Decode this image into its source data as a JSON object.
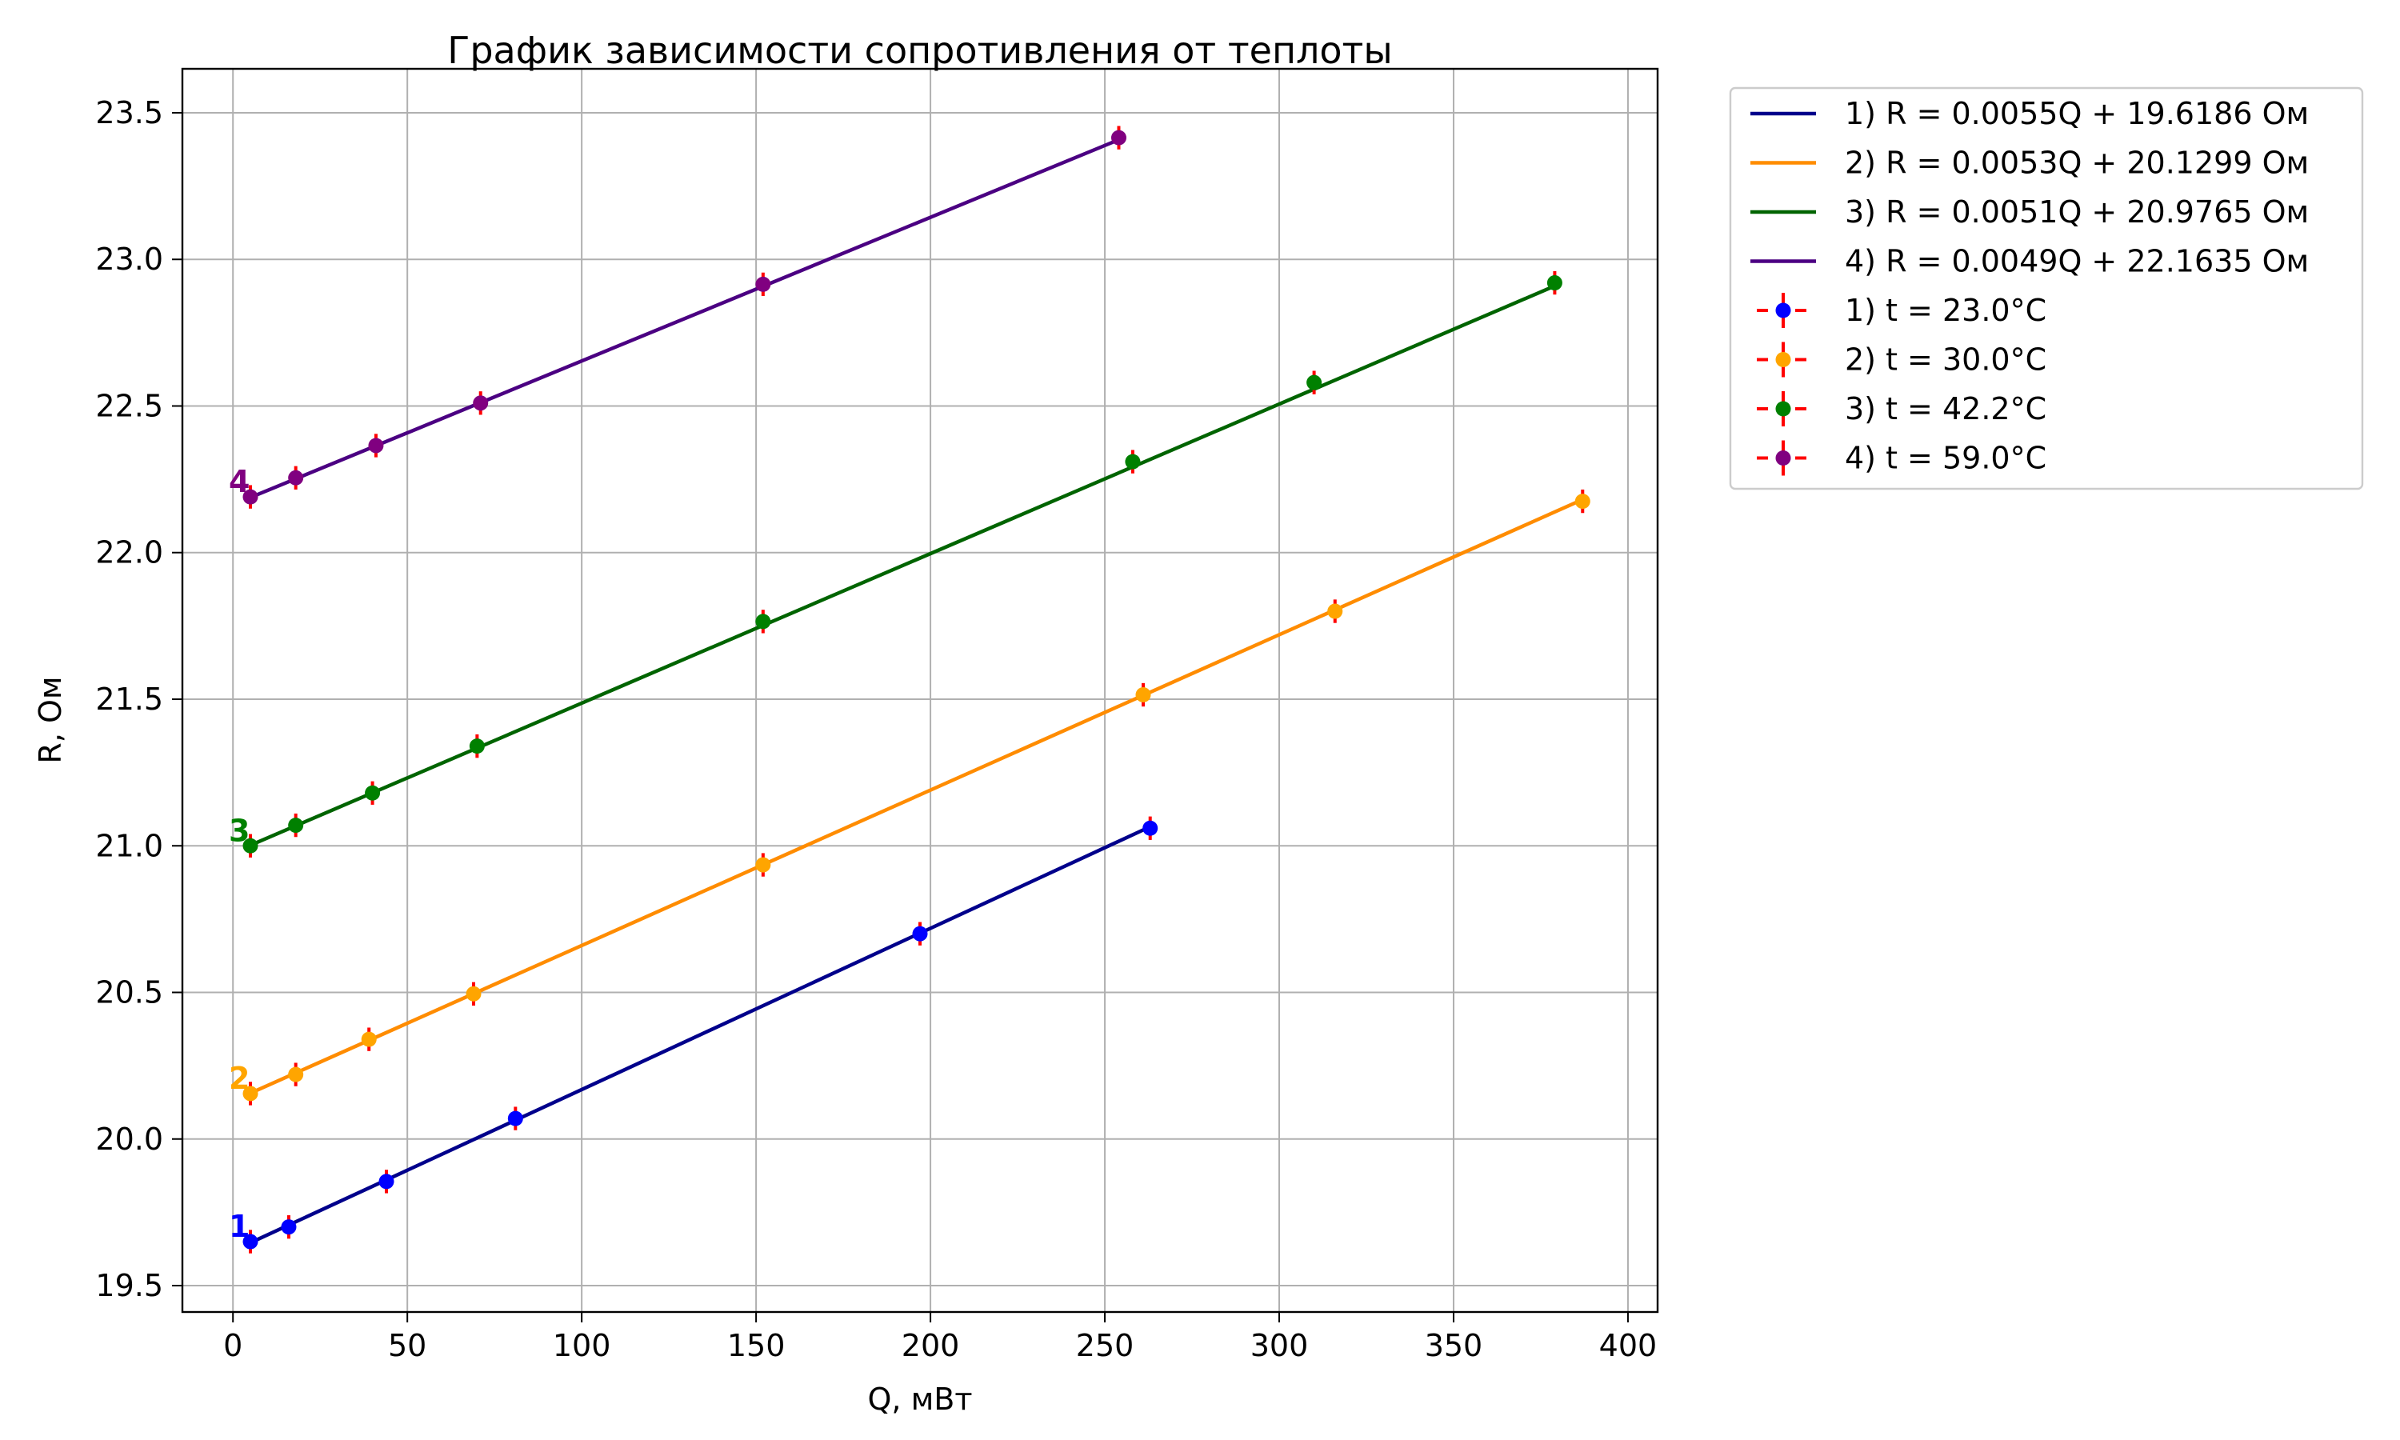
{
  "chart_data": {
    "type": "line",
    "title": "График зависимости сопротивления от теплоты",
    "xlabel": "Q, мВт",
    "ylabel": "R, Ом",
    "xlim": [
      -14.5,
      408.5
    ],
    "ylim": [
      19.41,
      23.65
    ],
    "xticks": [
      0,
      50,
      100,
      150,
      200,
      250,
      300,
      350,
      400
    ],
    "yticks": [
      19.5,
      20.0,
      20.5,
      21.0,
      21.5,
      22.0,
      22.5,
      23.0,
      23.5
    ],
    "xtick_labels": [
      "0",
      "50",
      "100",
      "150",
      "200",
      "250",
      "300",
      "350",
      "400"
    ],
    "ytick_labels": [
      "19.5",
      "20.0",
      "20.5",
      "21.0",
      "21.5",
      "22.0",
      "22.5",
      "23.0",
      "23.5"
    ],
    "grid": true,
    "legend_position": "outside-top-right",
    "series": [
      {
        "label": "1",
        "color": "#0000ff",
        "line_color": "#00008b",
        "fit_label": "1) R = 0.0055Q + 19.6186 Ом",
        "fit": {
          "slope": 0.0055,
          "intercept": 19.6186
        },
        "points_label": "1) t = 23.0°C",
        "x": [
          5,
          16,
          44,
          81,
          197,
          263
        ],
        "y": [
          19.65,
          19.7,
          19.855,
          20.07,
          20.7,
          21.06
        ],
        "yerr": 0.04
      },
      {
        "label": "2",
        "color": "#ffa500",
        "line_color": "#ff8c00",
        "fit_label": "2) R = 0.0053Q + 20.1299 Ом",
        "fit": {
          "slope": 0.0053,
          "intercept": 20.1299
        },
        "points_label": "2) t = 30.0°C",
        "x": [
          5,
          18,
          39,
          69,
          152,
          261,
          316,
          387
        ],
        "y": [
          20.155,
          20.22,
          20.34,
          20.495,
          20.935,
          21.515,
          21.8,
          22.175
        ],
        "yerr": 0.04
      },
      {
        "label": "3",
        "color": "#008000",
        "line_color": "#006400",
        "fit_label": "3) R = 0.0051Q + 20.9765 Ом",
        "fit": {
          "slope": 0.0051,
          "intercept": 20.9765
        },
        "points_label": "3) t = 42.2°C",
        "x": [
          5,
          18,
          40,
          70,
          152,
          258,
          310,
          379
        ],
        "y": [
          21.0,
          21.07,
          21.18,
          21.34,
          21.765,
          22.31,
          22.58,
          22.92
        ],
        "yerr": 0.04
      },
      {
        "label": "4",
        "color": "#800080",
        "line_color": "#4b0082",
        "fit_label": "4) R = 0.0049Q + 22.1635 Ом",
        "fit": {
          "slope": 0.0049,
          "intercept": 22.1635
        },
        "points_label": "4) t = 59.0°C",
        "x": [
          5,
          18,
          41,
          71,
          152,
          254
        ],
        "y": [
          22.19,
          22.255,
          22.365,
          22.51,
          22.915,
          23.415
        ],
        "yerr": 0.04
      }
    ],
    "errorbar_color": "#ff0000"
  }
}
